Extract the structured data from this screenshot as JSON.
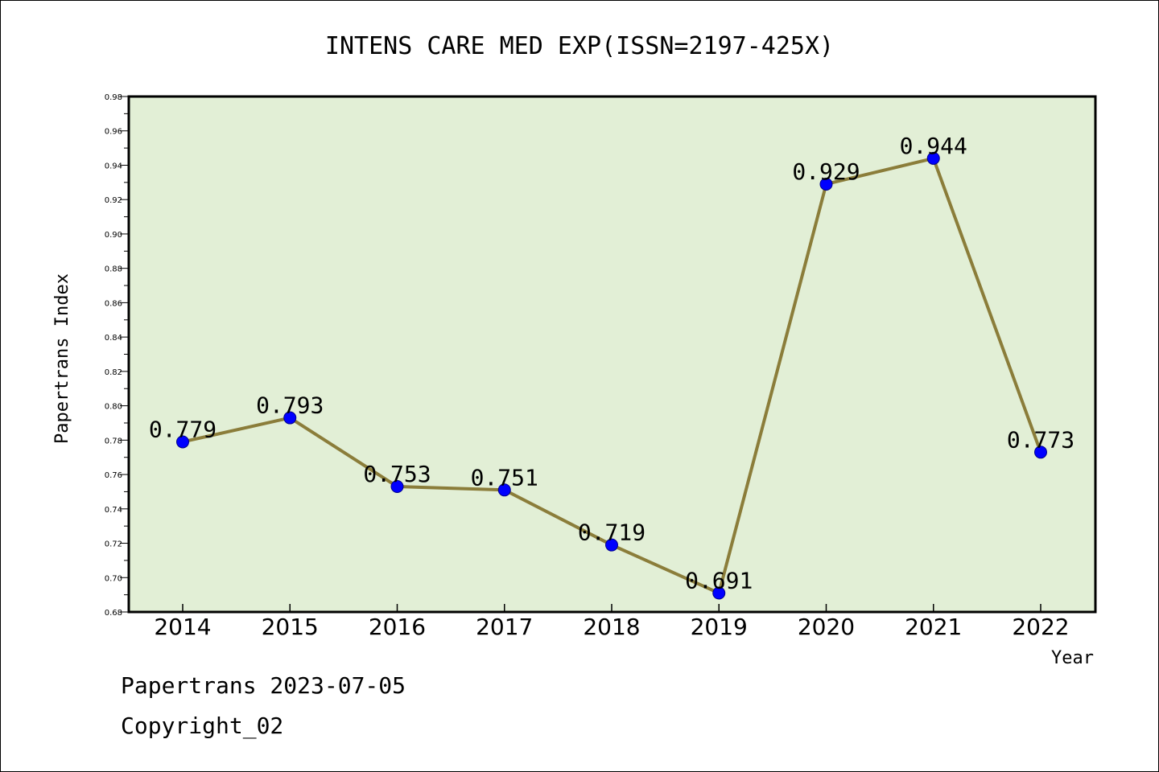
{
  "chart_data": {
    "type": "line",
    "title": "INTENS CARE MED EXP(ISSN=2197-425X)",
    "xlabel": "Year",
    "ylabel": "Papertrans Index",
    "x": [
      "2014",
      "2015",
      "2016",
      "2017",
      "2018",
      "2019",
      "2020",
      "2021",
      "2022"
    ],
    "values": [
      0.779,
      0.793,
      0.753,
      0.751,
      0.719,
      0.691,
      0.929,
      0.944,
      0.773
    ],
    "data_labels": [
      "0.779",
      "0.793",
      "0.753",
      "0.751",
      "0.719",
      "0.691",
      "0.929",
      "0.944",
      "0.773"
    ],
    "ylim": [
      0.68,
      0.98
    ],
    "yticks": [
      "0.68",
      "0.70",
      "0.72",
      "0.74",
      "0.76",
      "0.78",
      "0.80",
      "0.82",
      "0.84",
      "0.86",
      "0.88",
      "0.90",
      "0.92",
      "0.94",
      "0.96",
      "0.98"
    ],
    "grid": false,
    "colors": {
      "plot_background": "#e2efd6",
      "line": "#8b7d3a",
      "marker": "#0000ff"
    }
  },
  "footer": {
    "line1": "Papertrans 2023-07-05",
    "line2": "Copyright_02"
  }
}
